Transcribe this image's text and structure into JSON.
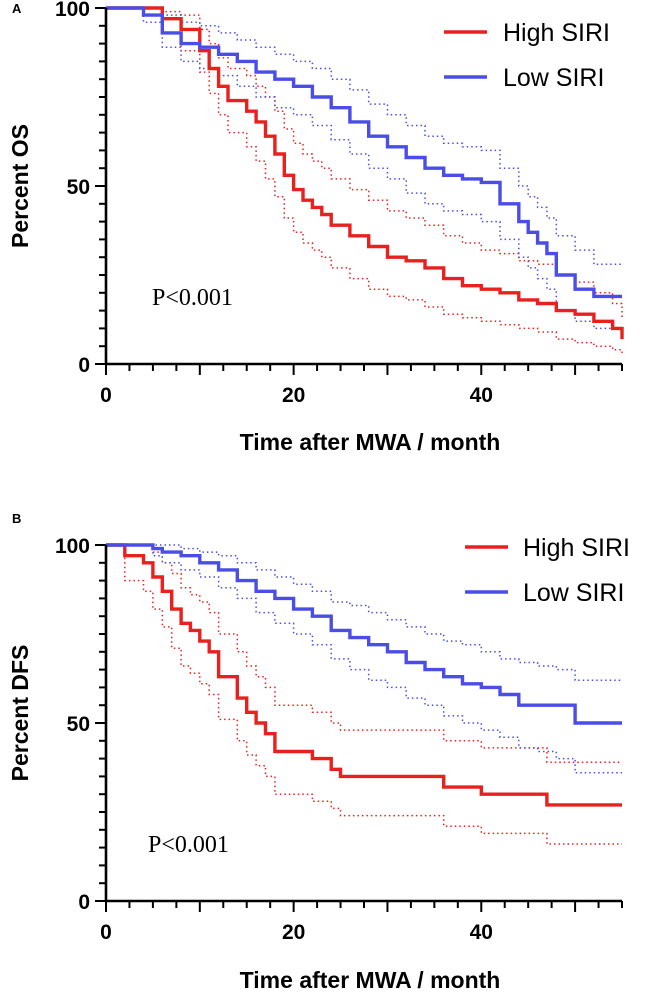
{
  "chart_data": [
    {
      "type": "line",
      "subtype": "kaplan-meier",
      "panel": "A",
      "ylabel": "Percent OS",
      "xlabel": "Time after MWA / month",
      "xlim": [
        0,
        55
      ],
      "ylim": [
        0,
        100
      ],
      "xticks": [
        0,
        20,
        40
      ],
      "yticks": [
        0,
        50,
        100
      ],
      "annotation": "P<0.001",
      "legend_position": "top-right",
      "series": [
        {
          "name": "High SIRI",
          "color": "#e8211f",
          "x": [
            0,
            6,
            8,
            10,
            11,
            12,
            13,
            15,
            16,
            17,
            18,
            19,
            20,
            21,
            22,
            23,
            24,
            26,
            28,
            30,
            32,
            34,
            36,
            38,
            40,
            42,
            44,
            46,
            48,
            50,
            52,
            54,
            55
          ],
          "y": [
            100,
            97,
            94,
            88,
            83,
            78,
            74,
            71,
            68,
            64,
            59,
            53,
            49,
            46,
            44,
            42,
            39,
            36,
            33,
            30,
            29,
            27,
            24,
            22,
            21,
            20,
            18,
            17,
            15,
            14,
            12,
            10,
            7
          ],
          "ci_upper": [
            100,
            99,
            98,
            94,
            90,
            86,
            83,
            81,
            78,
            75,
            71,
            66,
            62,
            59,
            57,
            55,
            52,
            49,
            46,
            43,
            41,
            39,
            36,
            34,
            32,
            31,
            29,
            28,
            25,
            23,
            20,
            17,
            13
          ],
          "ci_lower": [
            100,
            93,
            88,
            82,
            76,
            70,
            65,
            61,
            57,
            52,
            47,
            41,
            37,
            34,
            32,
            30,
            27,
            24,
            21,
            19,
            18,
            16,
            14,
            13,
            12,
            11,
            10,
            9,
            7,
            6,
            5,
            4,
            3
          ]
        },
        {
          "name": "Low SIRI",
          "color": "#4a4ee6",
          "x": [
            0,
            4,
            6,
            8,
            10,
            12,
            14,
            16,
            18,
            20,
            22,
            24,
            26,
            28,
            30,
            32,
            34,
            36,
            38,
            40,
            42,
            44,
            45,
            46,
            47,
            48,
            50,
            52,
            55
          ],
          "y": [
            100,
            98,
            93,
            90,
            89,
            87,
            85,
            82,
            80,
            78,
            75,
            72,
            68,
            64,
            61,
            58,
            55,
            53,
            52,
            51,
            45,
            40,
            37,
            34,
            31,
            25,
            21,
            19,
            19
          ],
          "ci_upper": [
            100,
            100,
            98,
            96,
            95,
            93,
            91,
            89,
            87,
            85,
            83,
            80,
            77,
            73,
            70,
            67,
            64,
            62,
            61,
            60,
            55,
            50,
            47,
            44,
            41,
            36,
            32,
            28,
            28
          ],
          "ci_lower": [
            100,
            96,
            89,
            85,
            83,
            81,
            78,
            75,
            72,
            70,
            67,
            63,
            59,
            55,
            52,
            48,
            45,
            43,
            42,
            40,
            35,
            30,
            27,
            24,
            21,
            15,
            12,
            10,
            10
          ]
        }
      ]
    },
    {
      "type": "line",
      "subtype": "kaplan-meier",
      "panel": "B",
      "ylabel": "Percent DFS",
      "xlabel": "Time after MWA / month",
      "xlim": [
        0,
        55
      ],
      "ylim": [
        0,
        100
      ],
      "xticks": [
        0,
        20,
        40
      ],
      "yticks": [
        0,
        50,
        100
      ],
      "annotation": "P<0.001",
      "legend_position": "top-right",
      "series": [
        {
          "name": "High SIRI",
          "color": "#e8211f",
          "x": [
            0,
            2,
            4,
            5,
            6,
            7,
            8,
            9,
            10,
            11,
            12,
            14,
            15,
            16,
            17,
            18,
            20,
            22,
            24,
            25,
            28,
            30,
            33,
            36,
            40,
            44,
            47,
            55
          ],
          "y": [
            100,
            97,
            95,
            91,
            87,
            82,
            78,
            76,
            73,
            70,
            63,
            57,
            53,
            50,
            47,
            42,
            42,
            40,
            37,
            35,
            35,
            35,
            35,
            32,
            30,
            30,
            27,
            27
          ],
          "ci_upper": [
            100,
            100,
            100,
            98,
            95,
            92,
            88,
            86,
            84,
            81,
            75,
            70,
            66,
            63,
            60,
            55,
            55,
            53,
            50,
            48,
            48,
            48,
            48,
            45,
            43,
            43,
            39,
            39
          ],
          "ci_lower": [
            100,
            90,
            87,
            82,
            77,
            71,
            66,
            64,
            61,
            58,
            51,
            45,
            41,
            38,
            35,
            30,
            30,
            28,
            26,
            24,
            24,
            24,
            24,
            21,
            19,
            19,
            16,
            16
          ]
        },
        {
          "name": "Low SIRI",
          "color": "#4a4ee6",
          "x": [
            0,
            5,
            6,
            8,
            10,
            12,
            14,
            16,
            18,
            20,
            22,
            24,
            26,
            28,
            30,
            32,
            34,
            36,
            38,
            40,
            42,
            44,
            46,
            48,
            50,
            55
          ],
          "y": [
            100,
            99,
            98,
            97,
            95,
            93,
            90,
            87,
            85,
            82,
            80,
            76,
            74,
            72,
            70,
            67,
            65,
            63,
            61,
            60,
            58,
            55,
            55,
            55,
            50,
            50
          ],
          "ci_upper": [
            100,
            100,
            100,
            99,
            98,
            97,
            95,
            93,
            91,
            89,
            87,
            84,
            83,
            81,
            79,
            77,
            75,
            73,
            72,
            70,
            68,
            67,
            66,
            65,
            62,
            62
          ],
          "ci_lower": [
            100,
            97,
            95,
            93,
            91,
            88,
            85,
            81,
            78,
            75,
            72,
            68,
            65,
            62,
            60,
            57,
            55,
            52,
            50,
            48,
            46,
            43,
            42,
            40,
            36,
            36
          ]
        }
      ]
    }
  ]
}
